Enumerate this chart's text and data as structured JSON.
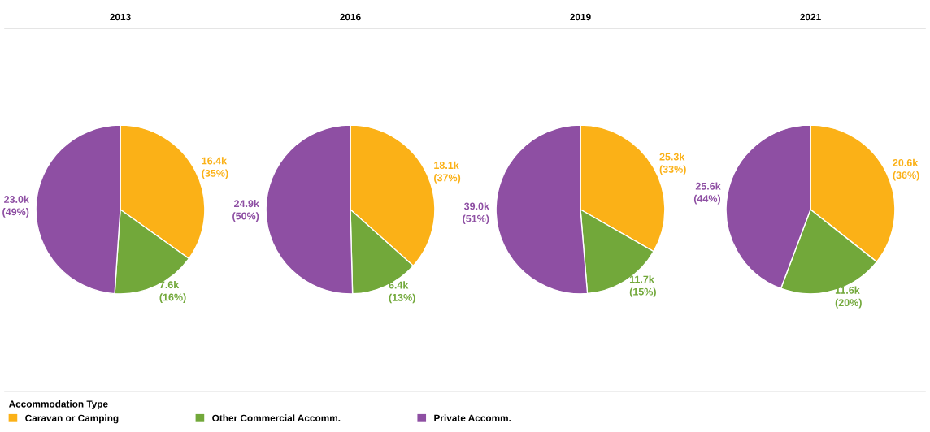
{
  "chart_data": [
    {
      "type": "pie",
      "title": "2013",
      "categories": [
        "Caravan or Camping",
        "Other Commercial Accomm.",
        "Private Accomm."
      ],
      "values": [
        16400,
        7600,
        23000
      ],
      "colors": [
        "#fbb117",
        "#72a83a",
        "#8e4fa3"
      ],
      "value_labels": [
        "16.4k\n(35%)",
        "7.6k\n(16%)",
        "23.0k\n(49%)"
      ],
      "legend": "bottom",
      "legend_title": "Accommodation Type"
    },
    {
      "type": "pie",
      "title": "2016",
      "categories": [
        null,
        null,
        null
      ],
      "values": [
        18100,
        6400,
        24900
      ],
      "colors": [
        "#fbb117",
        "#72a83a",
        "#8e4fa3"
      ],
      "value_labels": [
        "18.1k\n(37%)",
        "6.4k\n(13%)",
        "24.9k\n(50%)"
      ]
    },
    {
      "type": "pie",
      "title": "2019",
      "categories": [
        null,
        null,
        null
      ],
      "values": [
        25300,
        11700,
        39000
      ],
      "colors": [
        "#fbb117",
        "#72a83a",
        "#8e4fa3"
      ],
      "value_labels": [
        "25.3k\n(33%)",
        "11.7k\n(15%)",
        "39.0k\n(51%)"
      ]
    },
    {
      "type": "pie",
      "title": "2021",
      "categories": [
        null,
        null,
        null
      ],
      "values": [
        20600,
        11600,
        25600
      ],
      "colors": [
        "#fbb117",
        "#72a83a",
        "#8e4fa3"
      ],
      "value_labels": [
        "20.6k\n(36%)",
        "11.6k\n(20%)",
        "25.6k\n(44%)"
      ]
    }
  ]
}
